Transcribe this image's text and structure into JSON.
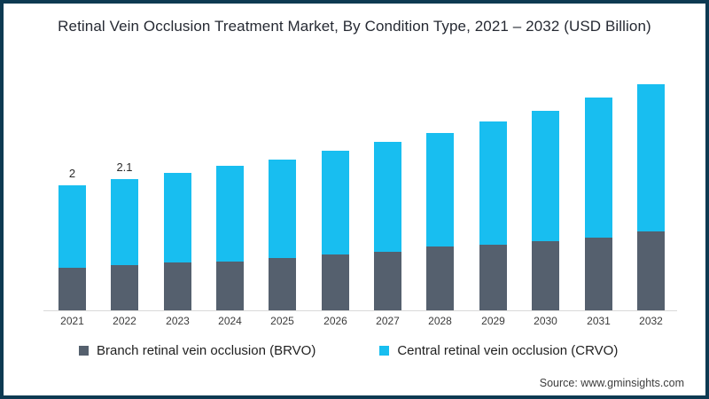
{
  "frame": {
    "border_color": "#0d3a52",
    "background": "#ffffff"
  },
  "chart_data": {
    "type": "bar",
    "stacked": true,
    "title": "Retinal Vein Occlusion Treatment Market, By Condition Type, 2021 – 2032 (USD Billion)",
    "unit": "USD Billion",
    "categories": [
      "2021",
      "2022",
      "2023",
      "2024",
      "2025",
      "2026",
      "2027",
      "2028",
      "2029",
      "2030",
      "2031",
      "2032"
    ],
    "series": [
      {
        "name": "Branch retinal vein occlusion (BRVO)",
        "color": "#55606e",
        "values": [
          0.68,
          0.72,
          0.76,
          0.78,
          0.84,
          0.89,
          0.93,
          1.02,
          1.05,
          1.11,
          1.17,
          1.26
        ]
      },
      {
        "name": "Central retinal vein occlusion (CRVO)",
        "color": "#18bef0",
        "values": [
          1.32,
          1.38,
          1.43,
          1.53,
          1.57,
          1.66,
          1.76,
          1.82,
          1.97,
          2.08,
          2.24,
          2.36
        ]
      }
    ],
    "totals": [
      2.0,
      2.1,
      2.19,
      2.31,
      2.41,
      2.55,
      2.69,
      2.84,
      3.02,
      3.19,
      3.41,
      3.62
    ],
    "totals_labels": [
      "2",
      "2.1",
      "",
      "",
      "",
      "",
      "",
      "",
      "",
      "",
      "",
      ""
    ],
    "ylim": [
      0,
      3.8
    ],
    "grid": false,
    "y_axis_visible": false,
    "legend_position": "bottom"
  },
  "source": {
    "text": "Source: www.gminsights.com"
  }
}
